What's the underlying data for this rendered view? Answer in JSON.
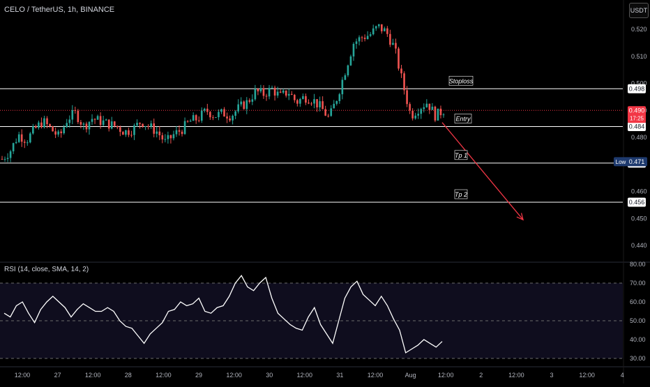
{
  "header": {
    "title": "CELO / TetherUS, 1h, BINANCE",
    "currency_button": "USDT"
  },
  "chart_data": [
    {
      "type": "candlestick",
      "title": "CELO / TetherUS, 1h, BINANCE",
      "y_axis": {
        "ticks": [
          "0.520",
          "0.510",
          "0.500",
          "0.490",
          "0.480",
          "0.470",
          "0.460",
          "0.450",
          "0.440"
        ],
        "range": [
          0.436,
          0.5265
        ]
      },
      "x_axis": {
        "ticks": [
          "12:00",
          "27",
          "12:00",
          "28",
          "12:00",
          "29",
          "12:00",
          "30",
          "12:00",
          "31",
          "12:00",
          "Aug",
          "12:00",
          "2",
          "12:00",
          "3",
          "12:00",
          "4"
        ]
      },
      "close_path": [
        0.472,
        0.475,
        0.481,
        0.479,
        0.483,
        0.486,
        0.483,
        0.48,
        0.487,
        0.489,
        0.484,
        0.487,
        0.486,
        0.485,
        0.484,
        0.482,
        0.483,
        0.486,
        0.484,
        0.482,
        0.478,
        0.481,
        0.483,
        0.486,
        0.487,
        0.49,
        0.488,
        0.489,
        0.488,
        0.491,
        0.493,
        0.497,
        0.496,
        0.498,
        0.495,
        0.497,
        0.493,
        0.495,
        0.494,
        0.491,
        0.487,
        0.495,
        0.505,
        0.515,
        0.517,
        0.518,
        0.521,
        0.519,
        0.513,
        0.5,
        0.488,
        0.491,
        0.493,
        0.488,
        0.49
      ],
      "price_lines": [
        {
          "name": "Stoploss",
          "value": 0.498,
          "label": "0.498"
        },
        {
          "name": "Entry",
          "value": 0.484,
          "label": "0.484"
        },
        {
          "name": "Tp 1",
          "value": 0.4705,
          "label": "0.470"
        },
        {
          "name": "Tp 2",
          "value": 0.456,
          "label": "0.456"
        }
      ],
      "current_price": {
        "value": 0.49,
        "label": "0.490",
        "countdown": "17:25",
        "color": "#f23645"
      },
      "low_marker": {
        "label": "Low",
        "value": 0.471,
        "value_label": "0.471",
        "color": "#1e3a6e"
      },
      "annotations": [
        "Stoploss",
        "Entry",
        "Tp 1",
        "Tp 2"
      ],
      "projection_arrow": {
        "from": 0.4855,
        "to": 0.4495,
        "color": "#f23645"
      },
      "colors": {
        "up": "#26a69a",
        "down": "#ef5350",
        "line": "#ffffff",
        "background": "#000000"
      }
    },
    {
      "type": "line",
      "title": "RSI (14, close, SMA, 14, 2)",
      "y_axis": {
        "ticks": [
          "80.00",
          "70.00",
          "60.00",
          "50.00",
          "40.00",
          "30.00"
        ],
        "range": [
          28,
          80
        ]
      },
      "bands": [
        70,
        50,
        30
      ],
      "values": [
        54,
        52,
        58,
        60,
        54,
        49,
        56,
        60,
        63,
        60,
        57,
        52,
        56,
        59,
        57,
        55,
        55,
        57,
        55,
        50,
        47,
        46,
        42,
        38,
        43,
        46,
        49,
        55,
        56,
        60,
        58,
        59,
        62,
        55,
        54,
        57,
        58,
        63,
        70,
        74,
        68,
        66,
        70,
        73,
        62,
        54,
        51,
        48,
        46,
        45,
        52,
        57,
        48,
        43,
        38,
        50,
        62,
        68,
        71,
        64,
        61,
        58,
        63,
        58,
        51,
        45,
        33,
        35,
        37,
        40,
        38,
        36,
        39
      ],
      "color": "#ffffff"
    }
  ]
}
